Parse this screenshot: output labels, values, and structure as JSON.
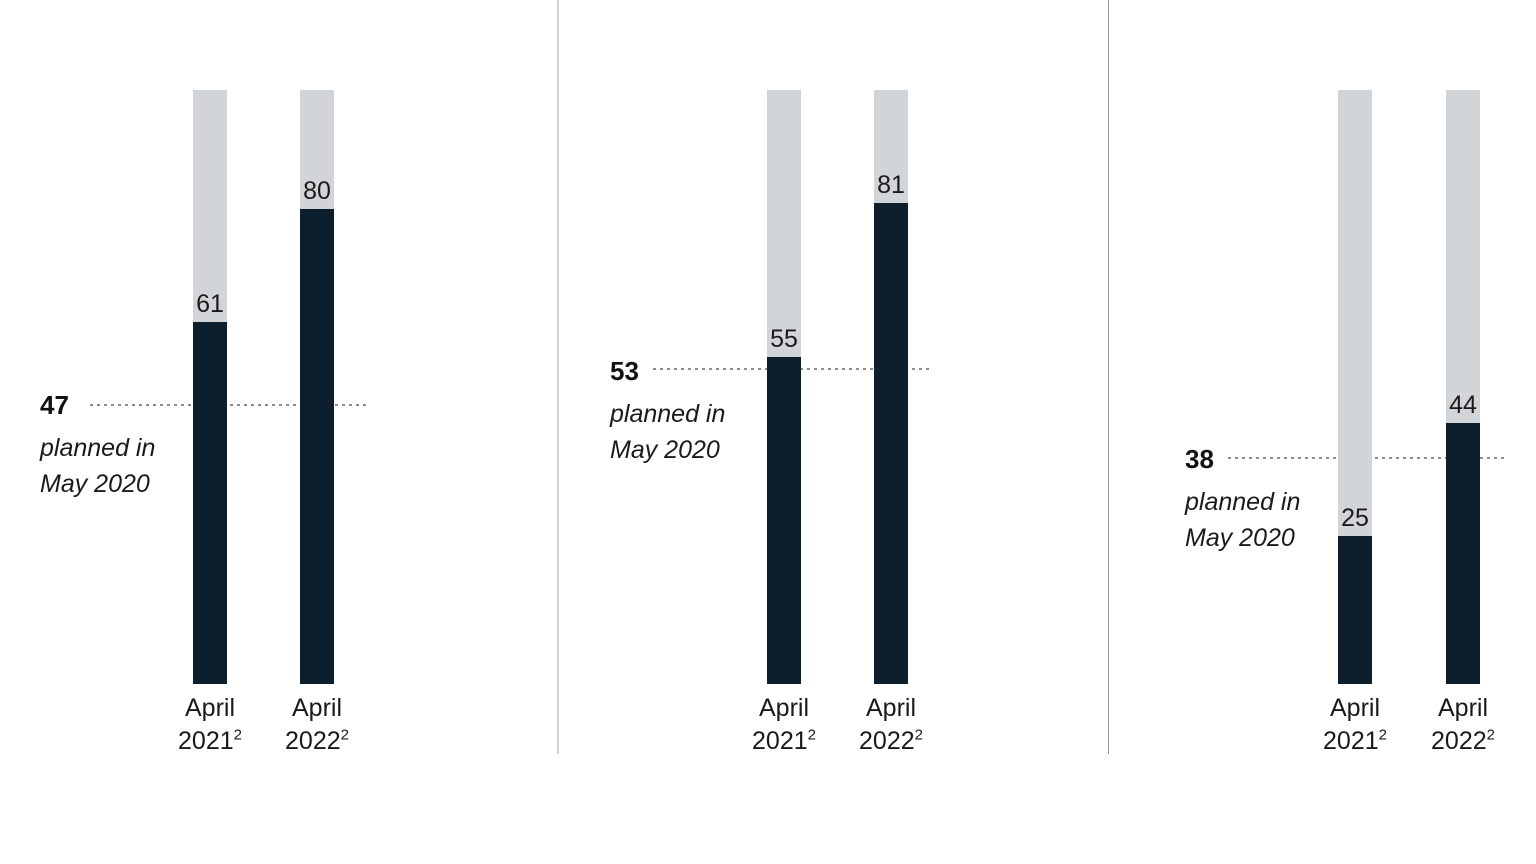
{
  "colors": {
    "bar_fill": "#0d1f2d",
    "bar_track": "#d2d5d7",
    "dashed_line": "#8c8c8c",
    "text": "#1a1a1a"
  },
  "chart_data": [
    {
      "type": "bar",
      "categories": [
        "April 2021²",
        "April 2022²"
      ],
      "values": [
        61,
        80
      ],
      "ylim": [
        0,
        100
      ],
      "grid": false,
      "legend": false,
      "track_full_value": 100,
      "reference_line": {
        "value": 47,
        "note_line1": "planned in",
        "note_line2": "May 2020",
        "style": "dashed"
      },
      "x_labels": [
        {
          "line1": "April",
          "year": "2021",
          "footnote": "2"
        },
        {
          "line1": "April",
          "year": "2022",
          "footnote": "2"
        }
      ]
    },
    {
      "type": "bar",
      "categories": [
        "April 2021²",
        "April 2022²"
      ],
      "values": [
        55,
        81
      ],
      "ylim": [
        0,
        100
      ],
      "grid": false,
      "legend": false,
      "track_full_value": 100,
      "reference_line": {
        "value": 53,
        "note_line1": "planned in",
        "note_line2": "May 2020",
        "style": "dashed"
      },
      "x_labels": [
        {
          "line1": "April",
          "year": "2021",
          "footnote": "2"
        },
        {
          "line1": "April",
          "year": "2022",
          "footnote": "2"
        }
      ]
    },
    {
      "type": "bar",
      "categories": [
        "April 2021²",
        "April 2022²"
      ],
      "values": [
        25,
        44
      ],
      "ylim": [
        0,
        100
      ],
      "grid": false,
      "legend": false,
      "track_full_value": 100,
      "reference_line": {
        "value": 38,
        "note_line1": "planned in",
        "note_line2": "May 2020",
        "style": "dashed"
      },
      "x_labels": [
        {
          "line1": "April",
          "year": "2021",
          "footnote": "2"
        },
        {
          "line1": "April",
          "year": "2022",
          "footnote": "2"
        }
      ]
    }
  ]
}
